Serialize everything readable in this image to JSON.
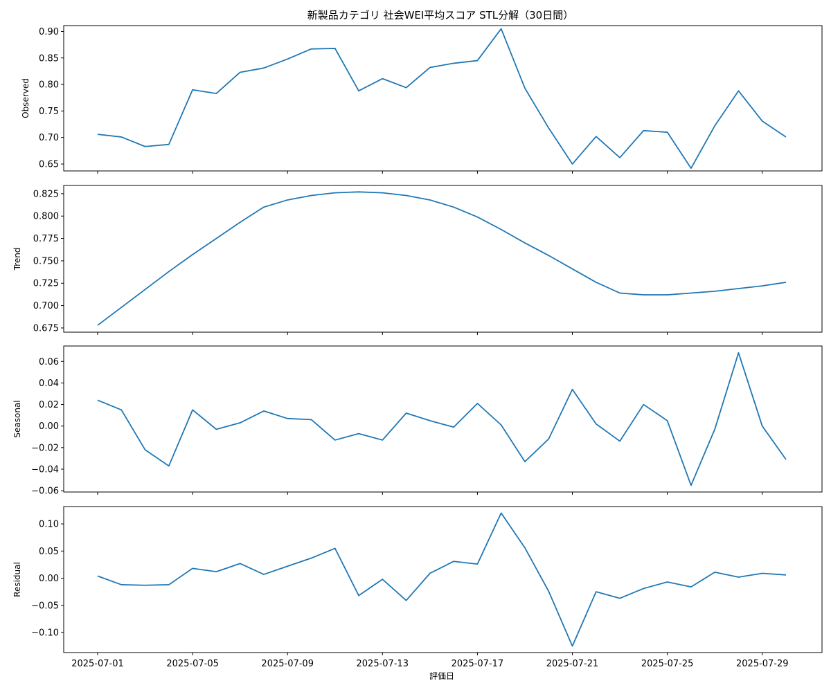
{
  "chart_data": {
    "type": "line",
    "title": "新製品カテゴリ 社会WEI平均スコア STL分解（30日間）",
    "xlabel": "評価日",
    "x": [
      "2025-07-01",
      "2025-07-02",
      "2025-07-03",
      "2025-07-04",
      "2025-07-05",
      "2025-07-06",
      "2025-07-07",
      "2025-07-08",
      "2025-07-09",
      "2025-07-10",
      "2025-07-11",
      "2025-07-12",
      "2025-07-13",
      "2025-07-14",
      "2025-07-15",
      "2025-07-16",
      "2025-07-17",
      "2025-07-18",
      "2025-07-19",
      "2025-07-20",
      "2025-07-21",
      "2025-07-22",
      "2025-07-23",
      "2025-07-24",
      "2025-07-25",
      "2025-07-26",
      "2025-07-27",
      "2025-07-28",
      "2025-07-29",
      "2025-07-30"
    ],
    "xticks": [
      "2025-07-01",
      "2025-07-05",
      "2025-07-09",
      "2025-07-13",
      "2025-07-17",
      "2025-07-21",
      "2025-07-25",
      "2025-07-29"
    ],
    "line_color": "#1f77b4",
    "grid": false,
    "panels": [
      {
        "ylabel": "Observed",
        "ylim": [
          0.637,
          0.911
        ],
        "yticks": [
          "0.65",
          "0.70",
          "0.75",
          "0.80",
          "0.85",
          "0.90"
        ],
        "values": [
          0.706,
          0.701,
          0.683,
          0.687,
          0.79,
          0.783,
          0.823,
          0.831,
          0.848,
          0.867,
          0.868,
          0.788,
          0.811,
          0.794,
          0.832,
          0.84,
          0.845,
          0.905,
          0.793,
          0.718,
          0.65,
          0.702,
          0.662,
          0.713,
          0.71,
          0.642,
          0.722,
          0.788,
          0.731,
          0.701
        ]
      },
      {
        "ylabel": "Trend",
        "ylim": [
          0.6703,
          0.8342
        ],
        "yticks": [
          "0.675",
          "0.700",
          "0.725",
          "0.750",
          "0.775",
          "0.800",
          "0.825"
        ],
        "values": [
          0.678,
          0.698,
          0.718,
          0.738,
          0.757,
          0.775,
          0.793,
          0.81,
          0.818,
          0.823,
          0.826,
          0.827,
          0.826,
          0.823,
          0.818,
          0.81,
          0.799,
          0.785,
          0.77,
          0.756,
          0.741,
          0.726,
          0.714,
          0.712,
          0.712,
          0.714,
          0.716,
          0.719,
          0.722,
          0.726
        ]
      },
      {
        "ylabel": "Seasonal",
        "ylim": [
          -0.0612,
          0.0743
        ],
        "yticks": [
          "−0.06",
          "−0.04",
          "−0.02",
          "0.00",
          "0.02",
          "0.04",
          "0.06"
        ],
        "values": [
          0.024,
          0.015,
          -0.022,
          -0.037,
          0.015,
          -0.003,
          0.003,
          0.014,
          0.007,
          0.006,
          -0.013,
          -0.007,
          -0.013,
          0.012,
          0.005,
          -0.001,
          0.021,
          0.001,
          -0.033,
          -0.012,
          0.034,
          0.002,
          -0.014,
          0.02,
          0.005,
          -0.055,
          -0.003,
          0.068,
          0.0,
          -0.031
        ]
      },
      {
        "ylabel": "Residual",
        "ylim": [
          -0.137,
          0.132
        ],
        "yticks": [
          "−0.10",
          "−0.05",
          "0.00",
          "0.05",
          "0.10"
        ],
        "values": [
          0.004,
          -0.012,
          -0.013,
          -0.012,
          0.018,
          0.012,
          0.027,
          0.007,
          0.022,
          0.037,
          0.055,
          -0.032,
          -0.002,
          -0.041,
          0.009,
          0.031,
          0.026,
          0.12,
          0.056,
          -0.024,
          -0.125,
          -0.025,
          -0.037,
          -0.019,
          -0.007,
          -0.016,
          0.011,
          0.002,
          0.009,
          0.006
        ]
      }
    ]
  }
}
